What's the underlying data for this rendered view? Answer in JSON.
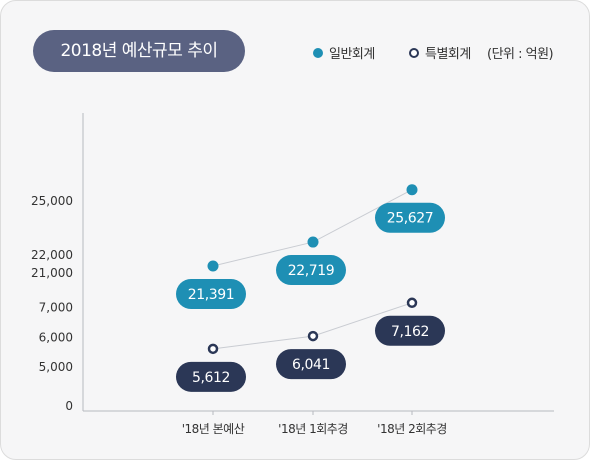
{
  "title": "2018년 예산규모 추이",
  "legend": {
    "general": "일반회계",
    "special": "특별회계",
    "unit": "(단위 : 억원)"
  },
  "colors": {
    "general": "#1e8fb4",
    "special": "#2b3756",
    "title_bg": "#5a6282",
    "line": "#c9ccd2"
  },
  "chart_data": {
    "type": "line",
    "title": "2018년 예산규모 추이",
    "axis_break": true,
    "categories": [
      "'18년 본예산",
      "'18년 1회추경",
      "'18년 2회추경"
    ],
    "upper_yticks": [
      "25,000",
      "22,000",
      "21,000"
    ],
    "lower_yticks": [
      "7,000",
      "6,000",
      "5,000",
      "0"
    ],
    "series": [
      {
        "name": "일반회계",
        "values": [
          21391,
          22719,
          25627
        ],
        "labels": [
          "21,391",
          "22,719",
          "25,627"
        ],
        "color": "#1e8fb4",
        "marker": "filled"
      },
      {
        "name": "특별회계",
        "values": [
          5612,
          6041,
          7162
        ],
        "labels": [
          "5,612",
          "6,041",
          "7,162"
        ],
        "color": "#2b3756",
        "marker": "ring"
      }
    ],
    "unit": "억원",
    "legend": "top-right",
    "grid": false
  }
}
